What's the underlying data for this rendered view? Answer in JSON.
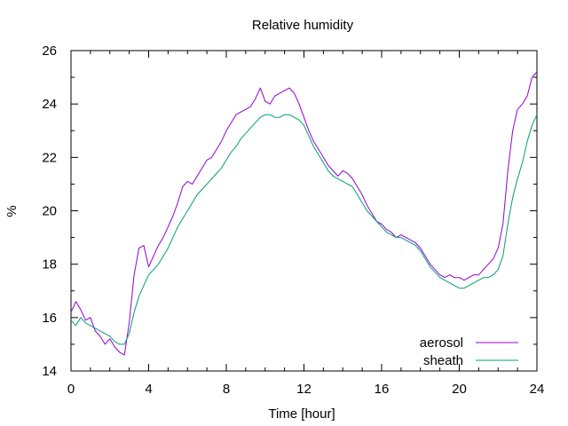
{
  "chart_data": {
    "type": "line",
    "title": "Relative humidity",
    "xlabel": "Time [hour]",
    "ylabel": "%",
    "xlim": [
      0,
      24
    ],
    "ylim": [
      14,
      26
    ],
    "xticks": [
      0,
      4,
      8,
      12,
      16,
      20,
      24
    ],
    "yticks": [
      14,
      16,
      18,
      20,
      22,
      24,
      26
    ],
    "grid": false,
    "legend_position": "bottom-right",
    "series": [
      {
        "name": "aerosol",
        "color": "#9400d3",
        "x": [
          0,
          0.25,
          0.5,
          0.75,
          1,
          1.25,
          1.5,
          1.75,
          2,
          2.25,
          2.5,
          2.75,
          3,
          3.25,
          3.5,
          3.75,
          4,
          4.25,
          4.5,
          4.75,
          5,
          5.25,
          5.5,
          5.75,
          6,
          6.25,
          6.5,
          6.75,
          7,
          7.25,
          7.5,
          7.75,
          8,
          8.25,
          8.5,
          8.75,
          9,
          9.25,
          9.5,
          9.75,
          10,
          10.25,
          10.5,
          10.75,
          11,
          11.25,
          11.5,
          11.75,
          12,
          12.25,
          12.5,
          12.75,
          13,
          13.25,
          13.5,
          13.75,
          14,
          14.25,
          14.5,
          14.75,
          15,
          15.25,
          15.5,
          15.75,
          16,
          16.25,
          16.5,
          16.75,
          17,
          17.25,
          17.5,
          17.75,
          18,
          18.25,
          18.5,
          18.75,
          19,
          19.25,
          19.5,
          19.75,
          20,
          20.25,
          20.5,
          20.75,
          21,
          21.25,
          21.5,
          21.75,
          22,
          22.25,
          22.5,
          22.75,
          23,
          23.25,
          23.5,
          23.75,
          24
        ],
        "y": [
          16.2,
          16.6,
          16.3,
          15.9,
          16.0,
          15.5,
          15.3,
          15.0,
          15.2,
          14.9,
          14.7,
          14.6,
          15.8,
          17.6,
          18.6,
          18.7,
          17.9,
          18.3,
          18.7,
          19.0,
          19.4,
          19.8,
          20.3,
          20.9,
          21.1,
          21.0,
          21.3,
          21.6,
          21.9,
          22.0,
          22.3,
          22.6,
          23.0,
          23.3,
          23.6,
          23.7,
          23.8,
          23.9,
          24.2,
          24.6,
          24.1,
          24.0,
          24.3,
          24.4,
          24.5,
          24.6,
          24.4,
          24.0,
          23.5,
          23.0,
          22.6,
          22.3,
          22.0,
          21.7,
          21.5,
          21.3,
          21.5,
          21.4,
          21.2,
          20.9,
          20.6,
          20.2,
          19.9,
          19.6,
          19.5,
          19.3,
          19.2,
          19.0,
          19.1,
          19.0,
          18.9,
          18.8,
          18.6,
          18.3,
          18.0,
          17.8,
          17.6,
          17.5,
          17.6,
          17.5,
          17.5,
          17.4,
          17.5,
          17.6,
          17.6,
          17.8,
          18.0,
          18.2,
          18.6,
          19.5,
          21.5,
          23.0,
          23.8,
          24.0,
          24.3,
          25.0,
          25.2
        ]
      },
      {
        "name": "sheath",
        "color": "#009e73",
        "x": [
          0,
          0.25,
          0.5,
          0.75,
          1,
          1.25,
          1.5,
          1.75,
          2,
          2.25,
          2.5,
          2.75,
          3,
          3.25,
          3.5,
          3.75,
          4,
          4.25,
          4.5,
          4.75,
          5,
          5.25,
          5.5,
          5.75,
          6,
          6.25,
          6.5,
          6.75,
          7,
          7.25,
          7.5,
          7.75,
          8,
          8.25,
          8.5,
          8.75,
          9,
          9.25,
          9.5,
          9.75,
          10,
          10.25,
          10.5,
          10.75,
          11,
          11.25,
          11.5,
          11.75,
          12,
          12.25,
          12.5,
          12.75,
          13,
          13.25,
          13.5,
          13.75,
          14,
          14.25,
          14.5,
          14.75,
          15,
          15.25,
          15.5,
          15.75,
          16,
          16.25,
          16.5,
          16.75,
          17,
          17.25,
          17.5,
          17.75,
          18,
          18.25,
          18.5,
          18.75,
          19,
          19.25,
          19.5,
          19.75,
          20,
          20.25,
          20.5,
          20.75,
          21,
          21.25,
          21.5,
          21.75,
          22,
          22.25,
          22.5,
          22.75,
          23,
          23.25,
          23.5,
          23.75,
          24
        ],
        "y": [
          15.9,
          15.7,
          16.0,
          15.8,
          15.7,
          15.6,
          15.5,
          15.4,
          15.3,
          15.1,
          15.0,
          15.0,
          15.4,
          16.2,
          16.8,
          17.2,
          17.6,
          17.8,
          18.0,
          18.3,
          18.6,
          19.0,
          19.4,
          19.7,
          20.0,
          20.3,
          20.6,
          20.8,
          21.0,
          21.2,
          21.4,
          21.6,
          21.9,
          22.2,
          22.4,
          22.7,
          22.9,
          23.1,
          23.3,
          23.5,
          23.6,
          23.6,
          23.5,
          23.5,
          23.6,
          23.6,
          23.5,
          23.4,
          23.2,
          22.8,
          22.4,
          22.1,
          21.8,
          21.5,
          21.3,
          21.2,
          21.1,
          21.0,
          20.9,
          20.6,
          20.3,
          20.0,
          19.8,
          19.6,
          19.4,
          19.2,
          19.1,
          19.0,
          19.0,
          18.9,
          18.8,
          18.7,
          18.5,
          18.2,
          17.9,
          17.7,
          17.5,
          17.4,
          17.3,
          17.2,
          17.1,
          17.1,
          17.2,
          17.3,
          17.4,
          17.5,
          17.5,
          17.6,
          17.8,
          18.3,
          19.5,
          20.5,
          21.2,
          21.8,
          22.6,
          23.2,
          23.6
        ]
      }
    ]
  }
}
